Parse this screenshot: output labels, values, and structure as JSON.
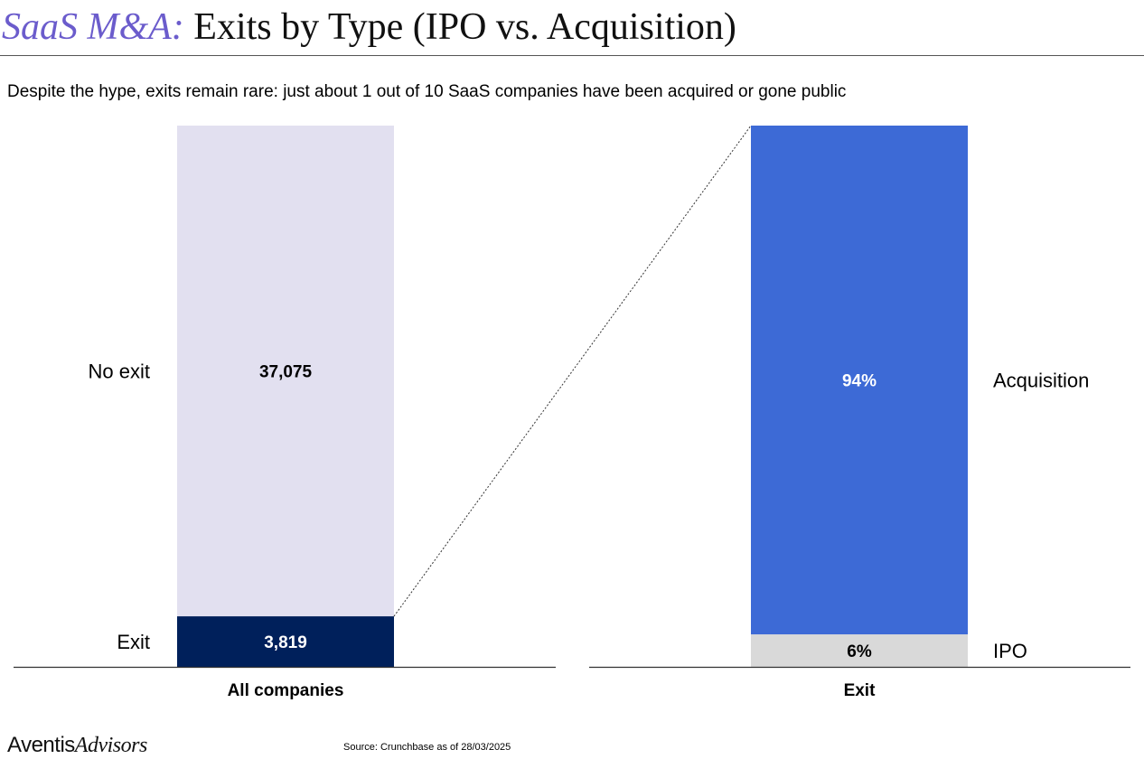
{
  "header": {
    "title_accent": "SaaS M&A:",
    "title_main": "Exits by Type (IPO vs. Acquisition)",
    "subtitle": "Despite the hype, exits remain rare: just about 1 out of 10 SaaS companies have been acquired or gone public"
  },
  "chart_data": [
    {
      "type": "bar",
      "stacked": true,
      "categories": [
        "All companies"
      ],
      "series": [
        {
          "name": "Exit",
          "values": [
            3819
          ],
          "label": "3,819",
          "color": "#00205b",
          "label_color": "#ffffff"
        },
        {
          "name": "No exit",
          "values": [
            37075
          ],
          "label": "37,075",
          "color": "#e2e0f0",
          "label_color": "#000000"
        }
      ]
    },
    {
      "type": "bar",
      "stacked": true,
      "categories": [
        "Exit"
      ],
      "series": [
        {
          "name": "IPO",
          "values": [
            6
          ],
          "label": "6%",
          "color": "#d9d9d9",
          "label_color": "#000000"
        },
        {
          "name": "Acquisition",
          "values": [
            94
          ],
          "label": "94%",
          "color": "#3d6ad6",
          "label_color": "#ffffff"
        }
      ]
    }
  ],
  "footer": {
    "brand_part1": "Aventis",
    "brand_part2": "Advisors",
    "source": "Source: Crunchbase as of 28/03/2025"
  },
  "colors": {
    "accent": "#6b5ccc"
  }
}
